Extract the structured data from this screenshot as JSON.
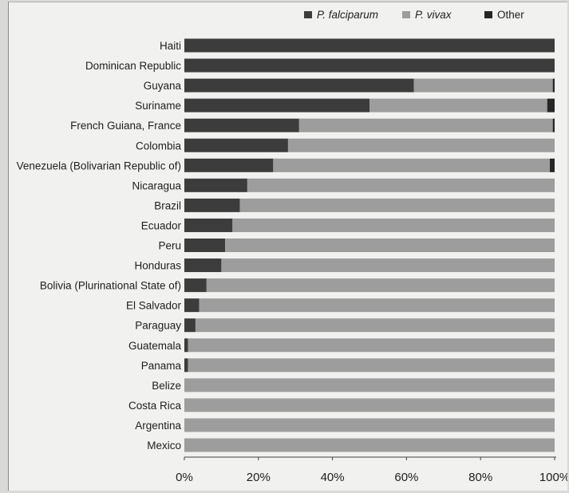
{
  "chart_data": {
    "type": "bar",
    "orientation": "horizontal",
    "stacked": true,
    "categories": [
      "Haiti",
      "Dominican Republic",
      "Guyana",
      "Suriname",
      "French Guiana, France",
      "Colombia",
      "Venezuela (Bolivarian Republic of)",
      "Nicaragua",
      "Brazil",
      "Ecuador",
      "Peru",
      "Honduras",
      "Bolivia (Plurinational State of)",
      "El Salvador",
      "Paraguay",
      "Guatemala",
      "Panama",
      "Belize",
      "Costa Rica",
      "Argentina",
      "Mexico"
    ],
    "series": [
      {
        "name": "P. falciparum",
        "values": [
          100,
          100,
          62,
          50,
          31,
          28,
          24,
          17,
          15,
          13,
          11,
          10,
          6,
          4,
          3,
          1,
          1,
          0,
          0,
          0,
          0
        ]
      },
      {
        "name": "P. vivax",
        "values": [
          0,
          0,
          37.5,
          48,
          68.5,
          72,
          74.7,
          83,
          85,
          87,
          89,
          90,
          94,
          96,
          97,
          99,
          99,
          100,
          100,
          100,
          100
        ]
      },
      {
        "name": "Other",
        "values": [
          0,
          0,
          0.5,
          2,
          0.5,
          0,
          1.3,
          0,
          0,
          0,
          0,
          0,
          0,
          0,
          0,
          0,
          0,
          0,
          0,
          0,
          0
        ]
      }
    ],
    "xlim": [
      0,
      100
    ],
    "x_ticks": [
      "0%",
      "20%",
      "40%",
      "60%",
      "80%",
      "100%"
    ],
    "legend_position": "top-right",
    "grid": false,
    "colors": {
      "P. falciparum": "#3c3c3c",
      "P. vivax": "#9d9d9d",
      "Other": "#262626"
    }
  }
}
